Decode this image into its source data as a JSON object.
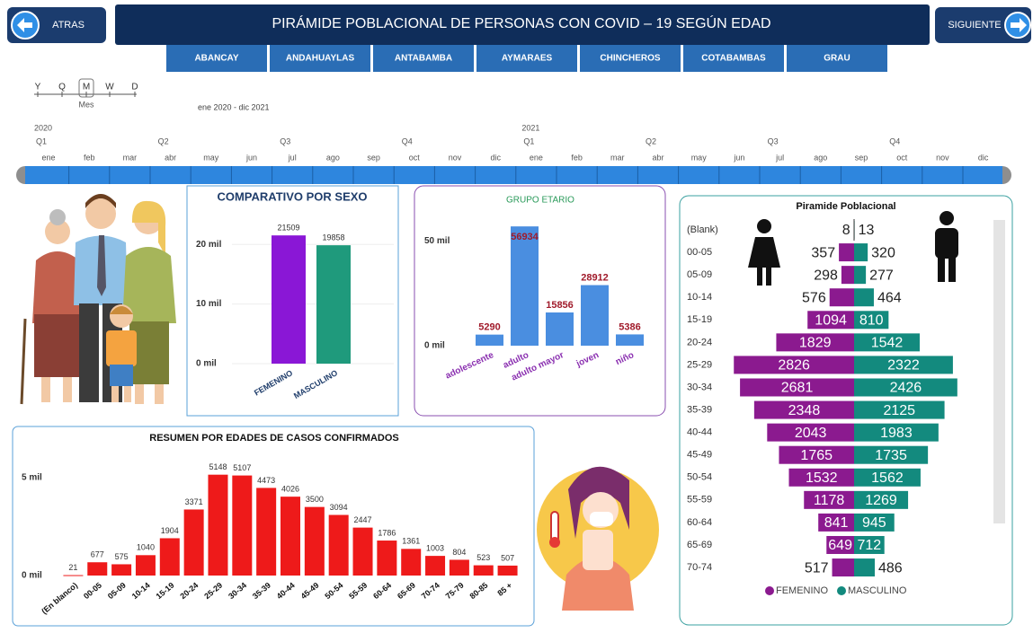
{
  "header": {
    "back": "ATRAS",
    "title": "PIRÁMIDE POBLACIONAL DE PERSONAS CON COVID – 19 SEGÚN EDAD",
    "next": "SIGUIENTE"
  },
  "tabs": [
    "ABANCAY",
    "ANDAHUAYLAS",
    "ANTABAMBA",
    "AYMARAES",
    "CHINCHEROS",
    "COTABAMBAS",
    "GRAU"
  ],
  "timeline": {
    "levels": [
      "Y",
      "Q",
      "M",
      "W",
      "D"
    ],
    "level_label": "Mes",
    "range": "ene 2020 - dic 2021",
    "years": [
      "2020",
      "2021"
    ],
    "quarters": [
      "Q1",
      "Q2",
      "Q3",
      "Q4"
    ],
    "months": [
      "ene",
      "feb",
      "mar",
      "abr",
      "may",
      "jun",
      "jul",
      "ago",
      "sep",
      "oct",
      "nov",
      "dic"
    ]
  },
  "chart_data": [
    {
      "type": "bar",
      "title": "COMPARATIVO POR SEXO",
      "categories": [
        "FEMENINO",
        "MASCULINO"
      ],
      "values": [
        21509,
        19858
      ],
      "colors": [
        "#8a17d6",
        "#1f9a7c"
      ],
      "ylim": [
        0,
        25000
      ],
      "yticks": [
        {
          "value": 0,
          "label": "0 mil"
        },
        {
          "value": 10000,
          "label": "10 mil"
        },
        {
          "value": 20000,
          "label": "20 mil"
        }
      ],
      "grid": true
    },
    {
      "type": "bar",
      "title": "GRUPO ETARIO",
      "categories": [
        "adolescente",
        "adulto",
        "adulto mayor",
        "joven",
        "niño"
      ],
      "values": [
        5290,
        56934,
        15856,
        28912,
        5386
      ],
      "color": "#4a8ee0",
      "ylim": [
        0,
        60000
      ],
      "yticks": [
        {
          "value": 0,
          "label": "0 mil"
        },
        {
          "value": 50000,
          "label": "50 mil"
        }
      ],
      "grid": false
    },
    {
      "type": "bar",
      "title": "RESUMEN POR EDADES DE CASOS CONFIRMADOS",
      "categories": [
        "(En blanco)",
        "00-05",
        "05-09",
        "10-14",
        "15-19",
        "20-24",
        "25-29",
        "30-34",
        "35-39",
        "40-44",
        "45-49",
        "50-54",
        "55-59",
        "60-64",
        "65-69",
        "70-74",
        "75-79",
        "80-85",
        "85 +"
      ],
      "values": [
        21,
        677,
        575,
        1040,
        1904,
        3371,
        5148,
        5107,
        4473,
        4026,
        3500,
        3094,
        2447,
        1786,
        1361,
        1003,
        804,
        523,
        507
      ],
      "color": "#ee1a1a",
      "ylim": [
        0,
        5500
      ],
      "yticks": [
        {
          "value": 0,
          "label": "0 mil"
        },
        {
          "value": 5000,
          "label": "5 mil"
        }
      ],
      "grid": false
    },
    {
      "type": "pyramid",
      "title": "Piramide Poblacional",
      "categories": [
        "(Blank)",
        "00-05",
        "05-09",
        "10-14",
        "15-19",
        "20-24",
        "25-29",
        "30-34",
        "35-39",
        "40-44",
        "45-49",
        "50-54",
        "55-59",
        "60-64",
        "65-69",
        "70-74"
      ],
      "series": [
        {
          "name": "FEMENINO",
          "color": "#8b1a8f",
          "values": [
            8,
            357,
            298,
            576,
            1094,
            1829,
            2826,
            2681,
            2348,
            2043,
            1765,
            1532,
            1178,
            841,
            649,
            517
          ]
        },
        {
          "name": "MASCULINO",
          "color": "#138a7e",
          "values": [
            13,
            320,
            277,
            464,
            810,
            1542,
            2322,
            2426,
            2125,
            1983,
            1735,
            1562,
            1269,
            945,
            712,
            486
          ]
        }
      ],
      "xlim": [
        0,
        3000
      ],
      "legend": "bottom"
    }
  ]
}
